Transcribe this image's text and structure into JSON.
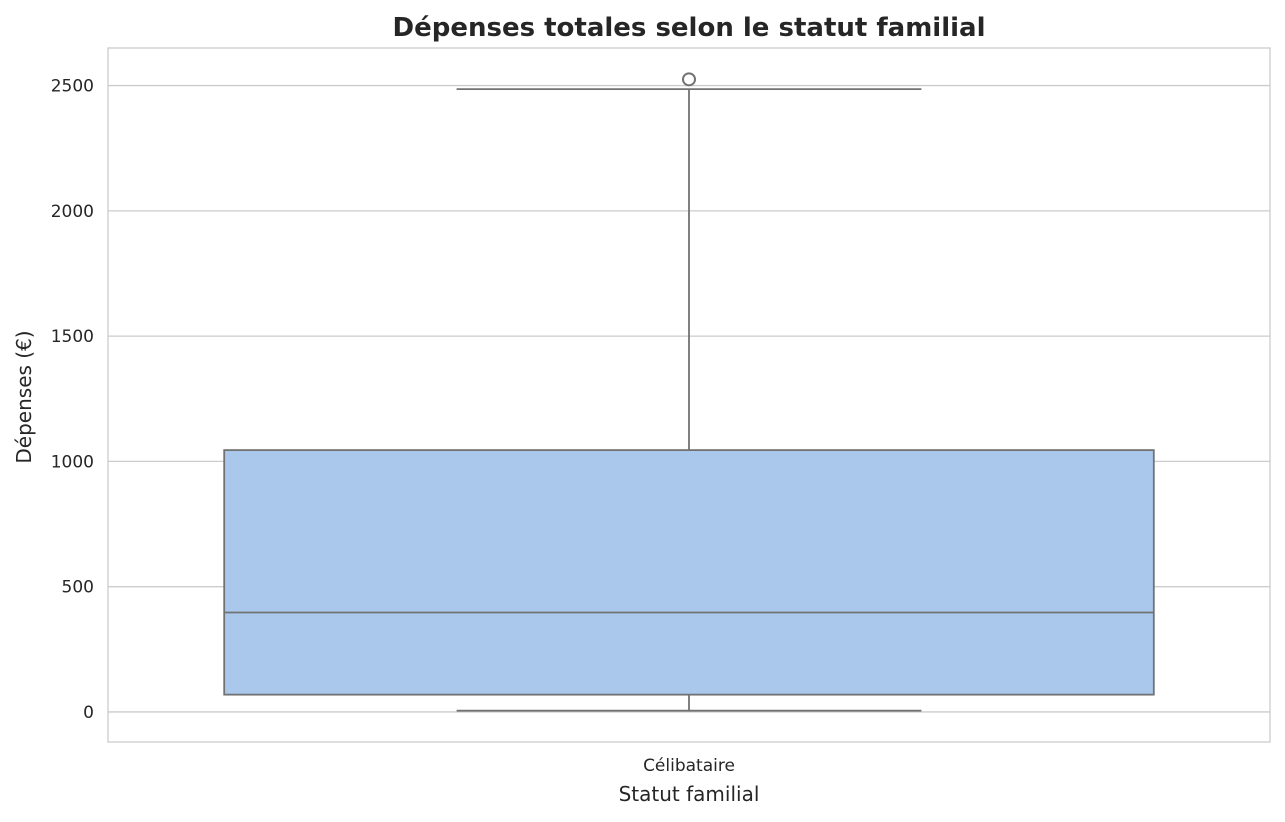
{
  "chart_data": {
    "type": "box",
    "title": "Dépenses totales selon le statut familial",
    "xlabel": "Statut familial",
    "ylabel": "Dépenses (€)",
    "categories": [
      "Célibataire"
    ],
    "boxes": [
      {
        "category": "Célibataire",
        "whisker_low": 5,
        "q1": 69,
        "median": 397,
        "q3": 1045,
        "whisker_high": 2486,
        "outliers": [
          2525
        ]
      }
    ],
    "ylim": [
      -120,
      2650
    ],
    "yticks": [
      0,
      500,
      1000,
      1500,
      2000,
      2500
    ],
    "grid": true,
    "colors": {
      "box_fill": "#a9c8ec",
      "box_line": "#727272",
      "grid": "#cccccc",
      "frame": "#cccccc",
      "text": "#262626"
    }
  }
}
